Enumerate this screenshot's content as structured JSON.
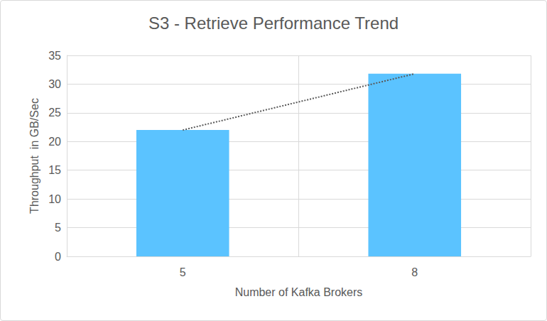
{
  "chart_data": {
    "type": "bar",
    "title": "S3 - Retrieve Performance Trend",
    "x_label": "Number of Kafka Brokers",
    "y_label": "Throughput  in GB/Sec",
    "categories": [
      "5",
      "8"
    ],
    "series": [
      {
        "type": "bar",
        "color": "#5bc3ff",
        "values": [
          22,
          31.8
        ]
      },
      {
        "type": "line",
        "line_style": "dotted",
        "color": "#595959",
        "values": [
          22,
          31.8
        ]
      }
    ],
    "ylim": [
      0,
      35
    ],
    "yticks": [
      0,
      5,
      10,
      15,
      20,
      25,
      30,
      35
    ],
    "grid": true
  }
}
